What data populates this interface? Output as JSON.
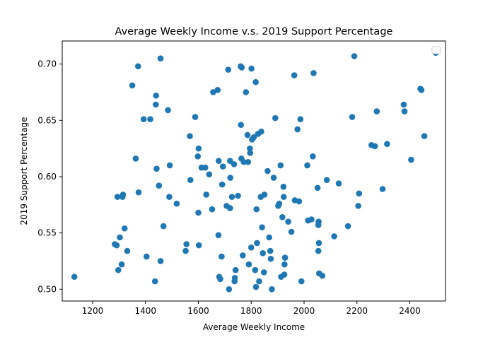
{
  "chart_data": {
    "type": "scatter",
    "title": "Average Weekly Income v.s. 2019 Support Percentage",
    "xlabel": "Average Weekly Income",
    "ylabel": "2019 Support Percentage",
    "xlim": [
      1085,
      2535
    ],
    "ylim": [
      0.4895,
      0.7205
    ],
    "xticks": [
      1200,
      1400,
      1600,
      1800,
      2000,
      2200,
      2400
    ],
    "yticks": [
      0.5,
      0.55,
      0.6,
      0.65,
      0.7
    ],
    "xtick_labels": [
      "1200",
      "1400",
      "1600",
      "1800",
      "2000",
      "2200",
      "2400"
    ],
    "ytick_labels": [
      "0.50",
      "0.55",
      "0.60",
      "0.65",
      "0.70"
    ],
    "grid": false,
    "legend": "top-right, empty",
    "marker_color": "#1f77b4",
    "series": [
      {
        "points": [
          [
            1131,
            0.511
          ],
          [
            1284,
            0.54
          ],
          [
            1291,
            0.539
          ],
          [
            1294,
            0.582
          ],
          [
            1297,
            0.517
          ],
          [
            1303,
            0.546
          ],
          [
            1310,
            0.522
          ],
          [
            1313,
            0.582
          ],
          [
            1315,
            0.584
          ],
          [
            1321,
            0.554
          ],
          [
            1331,
            0.534
          ],
          [
            1350,
            0.681
          ],
          [
            1363,
            0.616
          ],
          [
            1372,
            0.698
          ],
          [
            1374,
            0.586
          ],
          [
            1393,
            0.651
          ],
          [
            1404,
            0.529
          ],
          [
            1418,
            0.651
          ],
          [
            1436,
            0.507
          ],
          [
            1439,
            0.664
          ],
          [
            1440,
            0.672
          ],
          [
            1442,
            0.607
          ],
          [
            1451,
            0.592
          ],
          [
            1457,
            0.705
          ],
          [
            1457,
            0.525
          ],
          [
            1468,
            0.556
          ],
          [
            1485,
            0.659
          ],
          [
            1490,
            0.582
          ],
          [
            1492,
            0.61
          ],
          [
            1518,
            0.576
          ],
          [
            1552,
            0.534
          ],
          [
            1555,
            0.54
          ],
          [
            1568,
            0.636
          ],
          [
            1570,
            0.597
          ],
          [
            1588,
            0.653
          ],
          [
            1598,
            0.618
          ],
          [
            1600,
            0.568
          ],
          [
            1601,
            0.625
          ],
          [
            1602,
            0.539
          ],
          [
            1612,
            0.608
          ],
          [
            1626,
            0.608
          ],
          [
            1630,
            0.584
          ],
          [
            1641,
            0.602
          ],
          [
            1652,
            0.571
          ],
          [
            1656,
            0.675
          ],
          [
            1673,
            0.677
          ],
          [
            1676,
            0.548
          ],
          [
            1677,
            0.614
          ],
          [
            1679,
            0.511
          ],
          [
            1683,
            0.509
          ],
          [
            1688,
            0.529
          ],
          [
            1690,
            0.593
          ],
          [
            1693,
            0.609
          ],
          [
            1707,
            0.574
          ],
          [
            1713,
            0.695
          ],
          [
            1716,
            0.5
          ],
          [
            1720,
            0.614
          ],
          [
            1720,
            0.572
          ],
          [
            1721,
            0.599
          ],
          [
            1727,
            0.582
          ],
          [
            1735,
            0.611
          ],
          [
            1737,
            0.507
          ],
          [
            1738,
            0.51
          ],
          [
            1741,
            0.517
          ],
          [
            1750,
            0.583
          ],
          [
            1760,
            0.698
          ],
          [
            1761,
            0.646
          ],
          [
            1763,
            0.616
          ],
          [
            1764,
            0.697
          ],
          [
            1768,
            0.53
          ],
          [
            1772,
            0.613
          ],
          [
            1780,
            0.675
          ],
          [
            1786,
            0.637
          ],
          [
            1788,
            0.613
          ],
          [
            1791,
            0.522
          ],
          [
            1795,
            0.625
          ],
          [
            1796,
            0.621
          ],
          [
            1800,
            0.537
          ],
          [
            1801,
            0.696
          ],
          [
            1803,
            0.633
          ],
          [
            1810,
            0.635
          ],
          [
            1815,
            0.517
          ],
          [
            1817,
            0.684
          ],
          [
            1818,
            0.502
          ],
          [
            1820,
            0.571
          ],
          [
            1822,
            0.541
          ],
          [
            1826,
            0.638
          ],
          [
            1830,
            0.507
          ],
          [
            1836,
            0.582
          ],
          [
            1838,
            0.64
          ],
          [
            1841,
            0.555
          ],
          [
            1844,
            0.532
          ],
          [
            1848,
            0.515
          ],
          [
            1850,
            0.584
          ],
          [
            1862,
            0.605
          ],
          [
            1868,
            0.546
          ],
          [
            1872,
            0.534
          ],
          [
            1874,
            0.527
          ],
          [
            1878,
            0.5
          ],
          [
            1885,
            0.599
          ],
          [
            1891,
            0.652
          ],
          [
            1902,
            0.574
          ],
          [
            1906,
            0.576
          ],
          [
            1911,
            0.61
          ],
          [
            1913,
            0.511
          ],
          [
            1918,
            0.564
          ],
          [
            1922,
            0.591
          ],
          [
            1923,
            0.582
          ],
          [
            1925,
            0.513
          ],
          [
            1926,
            0.522
          ],
          [
            1928,
            0.528
          ],
          [
            1940,
            0.56
          ],
          [
            1952,
            0.551
          ],
          [
            1963,
            0.69
          ],
          [
            1965,
            0.579
          ],
          [
            1975,
            0.642
          ],
          [
            1981,
            0.578
          ],
          [
            1986,
            0.651
          ],
          [
            1990,
            0.507
          ],
          [
            2012,
            0.61
          ],
          [
            2015,
            0.561
          ],
          [
            2028,
            0.562
          ],
          [
            2033,
            0.618
          ],
          [
            2036,
            0.692
          ],
          [
            2051,
            0.59
          ],
          [
            2054,
            0.557
          ],
          [
            2054,
            0.534
          ],
          [
            2055,
            0.56
          ],
          [
            2056,
            0.541
          ],
          [
            2057,
            0.514
          ],
          [
            2069,
            0.512
          ],
          [
            2086,
            0.597
          ],
          [
            2114,
            0.547
          ],
          [
            2131,
            0.594
          ],
          [
            2166,
            0.556
          ],
          [
            2182,
            0.653
          ],
          [
            2190,
            0.707
          ],
          [
            2205,
            0.574
          ],
          [
            2208,
            0.585
          ],
          [
            2255,
            0.628
          ],
          [
            2268,
            0.627
          ],
          [
            2275,
            0.658
          ],
          [
            2297,
            0.589
          ],
          [
            2314,
            0.629
          ],
          [
            2377,
            0.664
          ],
          [
            2380,
            0.658
          ],
          [
            2405,
            0.615
          ],
          [
            2440,
            0.678
          ],
          [
            2444,
            0.677
          ],
          [
            2455,
            0.636
          ],
          [
            2498,
            0.71
          ]
        ]
      }
    ]
  }
}
